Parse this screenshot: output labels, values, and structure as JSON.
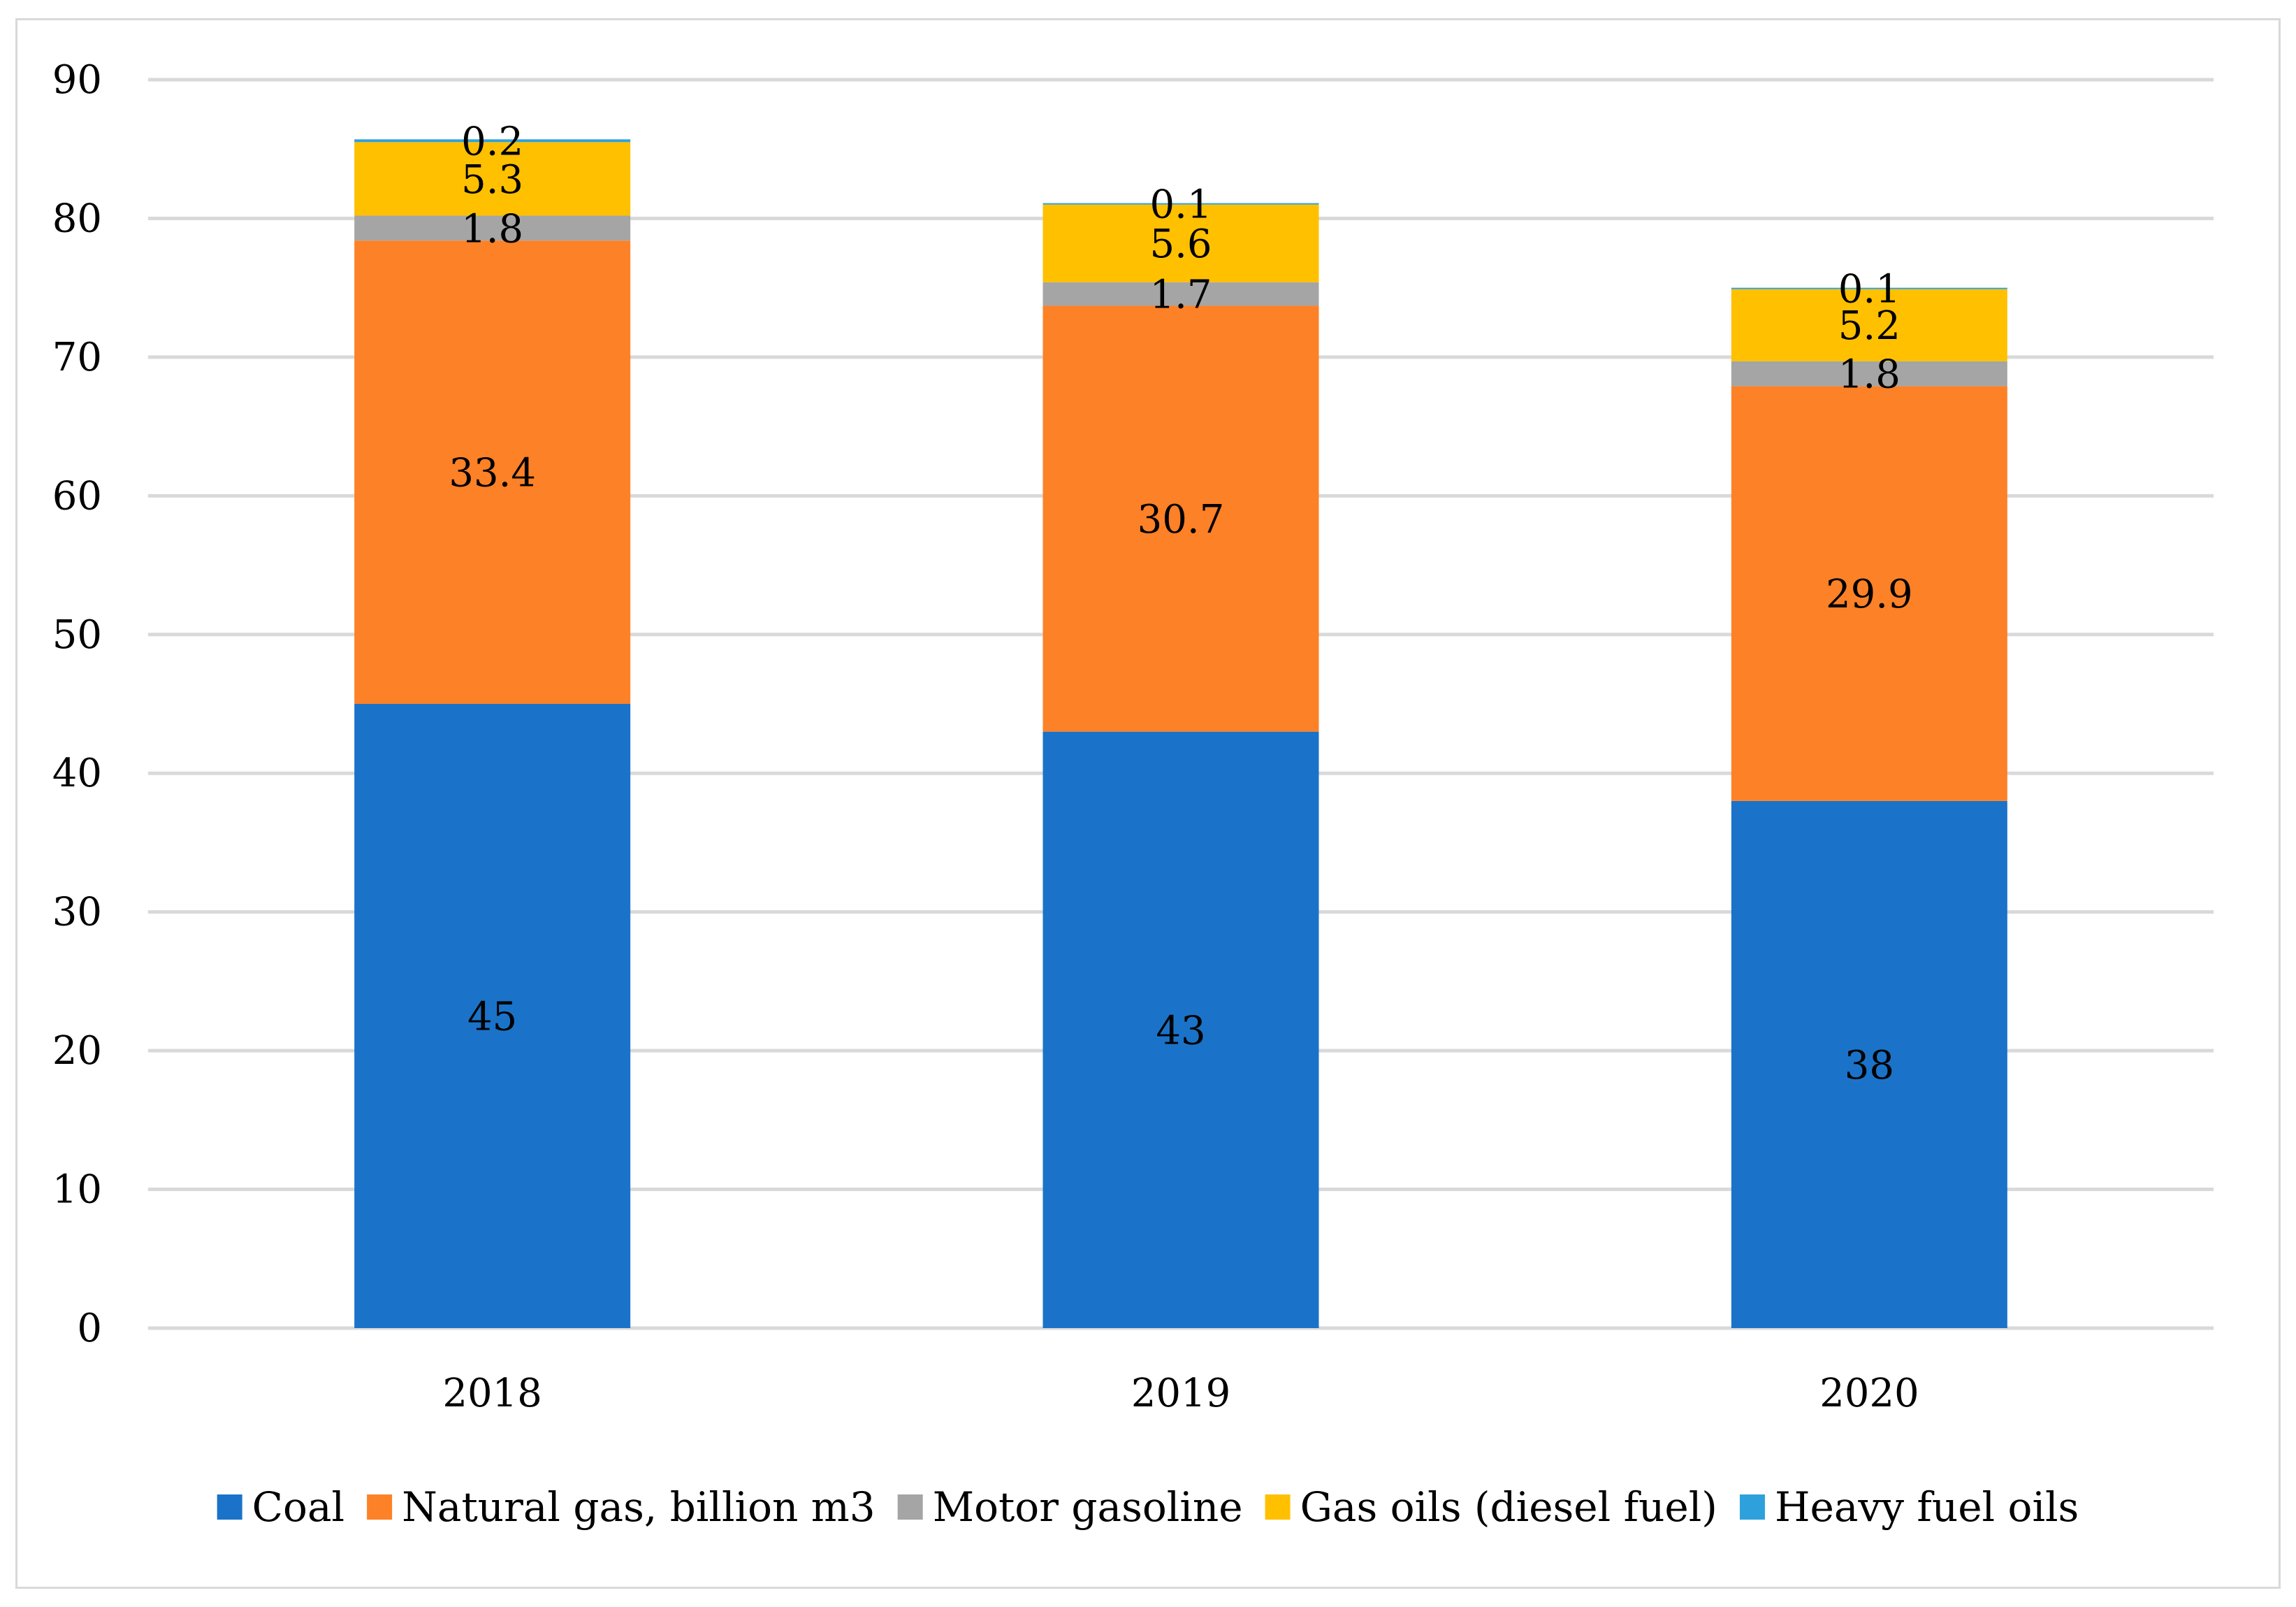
{
  "chart_data": {
    "type": "bar",
    "stacked": true,
    "categories": [
      "2018",
      "2019",
      "2020"
    ],
    "series": [
      {
        "name": "Coal",
        "color": "#1a73c8",
        "values": [
          45,
          43,
          38
        ],
        "labels": [
          "45",
          "43",
          "38"
        ]
      },
      {
        "name": "Natural gas, billion m3",
        "color": "#fd8127",
        "values": [
          33.4,
          30.7,
          29.9
        ],
        "labels": [
          "33.4",
          "30.7",
          "29.9"
        ]
      },
      {
        "name": "Motor gasoline",
        "color": "#a5a5a5",
        "values": [
          1.8,
          1.7,
          1.8
        ],
        "labels": [
          "1.8",
          "1.7",
          "1.8"
        ]
      },
      {
        "name": "Gas oils (diesel fuel)",
        "color": "#ffc000",
        "values": [
          5.3,
          5.6,
          5.2
        ],
        "labels": [
          "5.3",
          "5.6",
          "5.2"
        ]
      },
      {
        "name": "Heavy fuel oils",
        "color": "#2ea1dc",
        "values": [
          0.2,
          0.1,
          0.1
        ],
        "labels": [
          "0.2",
          "0.1",
          "0.1"
        ]
      }
    ],
    "ylim": [
      0,
      90
    ],
    "yticks": [
      "0",
      "10",
      "20",
      "30",
      "40",
      "50",
      "60",
      "70",
      "80",
      "90"
    ],
    "title": "",
    "xlabel": "",
    "ylabel": "",
    "grid": true,
    "legend_position": "bottom"
  }
}
